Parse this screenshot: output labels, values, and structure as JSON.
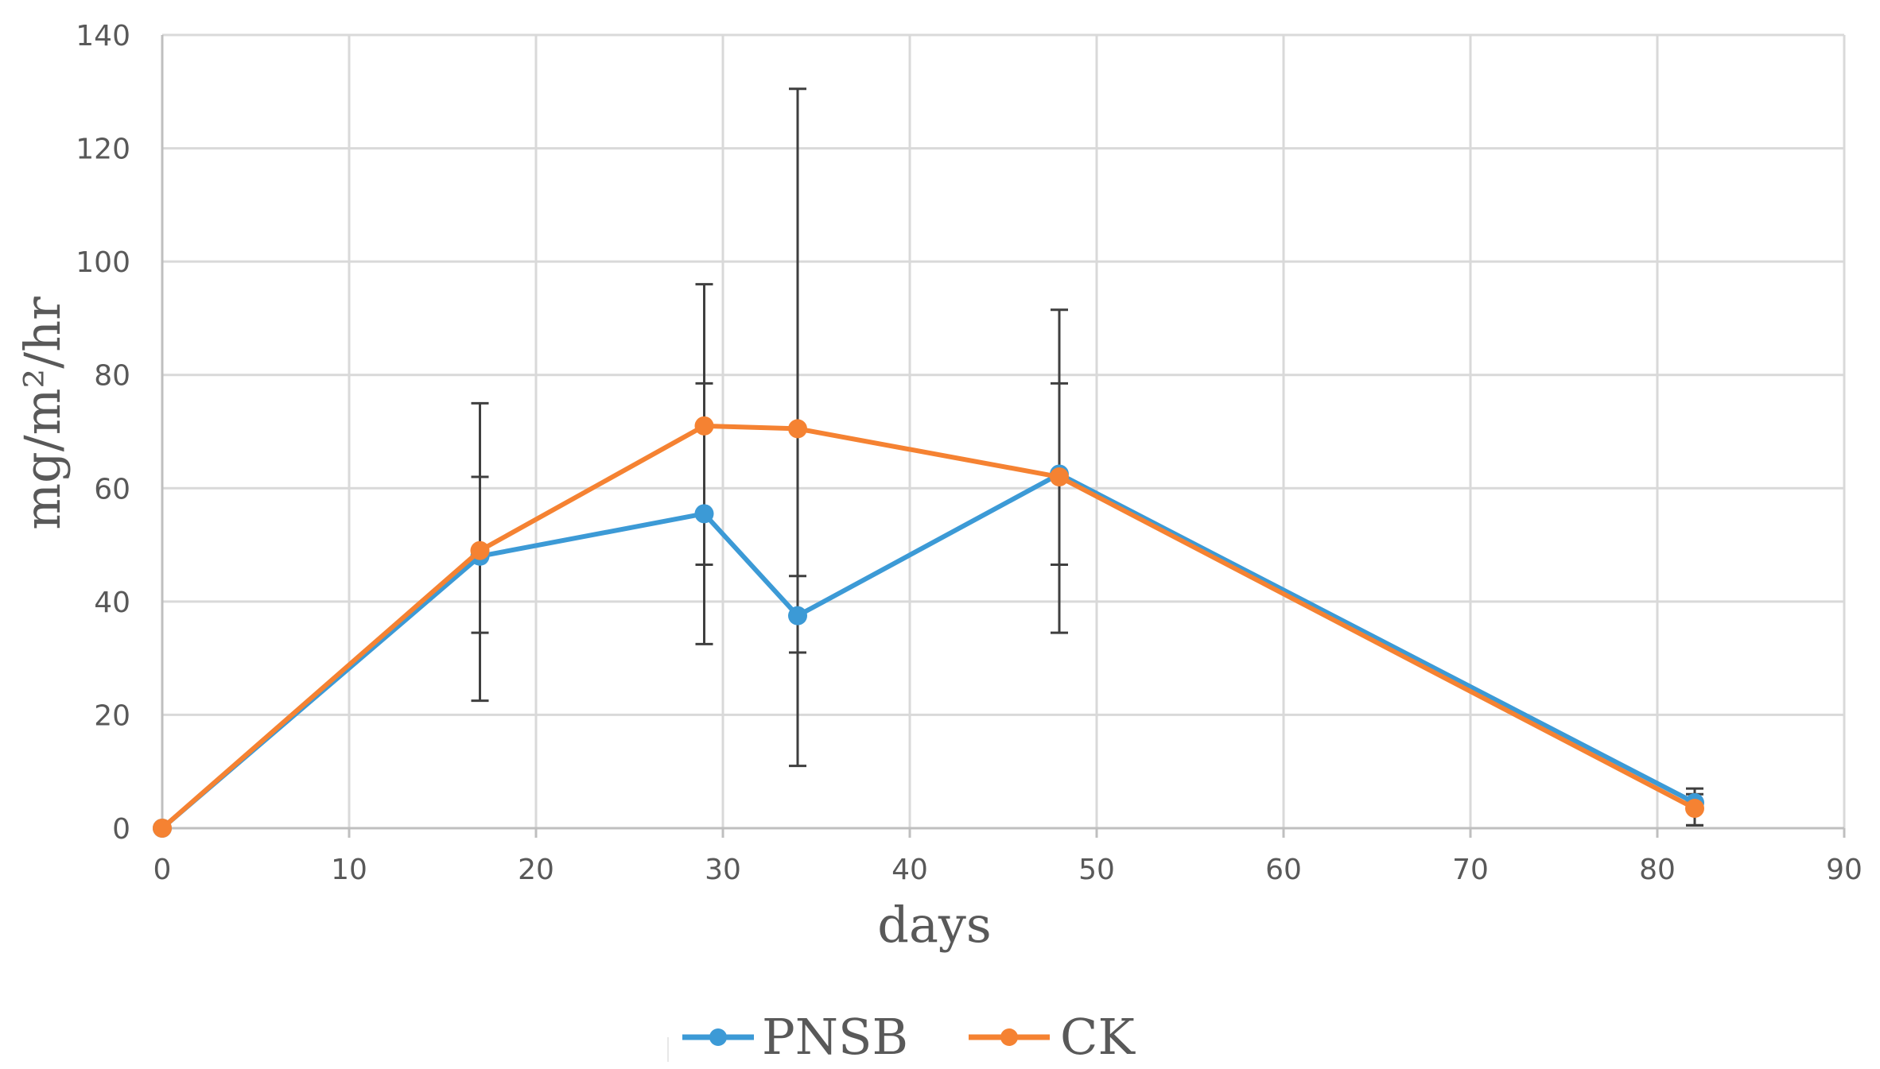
{
  "chart_data": {
    "type": "line",
    "title": "",
    "xlabel": "days",
    "ylabel": "mg/m²/hr",
    "xlim": [
      0,
      90
    ],
    "ylim": [
      0,
      140
    ],
    "xticks": [
      0,
      10,
      20,
      30,
      40,
      50,
      60,
      70,
      80,
      90
    ],
    "yticks": [
      0,
      20,
      40,
      60,
      80,
      100,
      120,
      140
    ],
    "grid": true,
    "legend_position": "bottom",
    "series": [
      {
        "name": "PNSB",
        "color": "#3c9ad6",
        "x": [
          0,
          17,
          29,
          34,
          48,
          82
        ],
        "values": [
          0,
          48,
          55.5,
          37.5,
          62.5,
          4.5
        ],
        "error_low": [
          0,
          34.5,
          46.5,
          11,
          34.5,
          0.5
        ],
        "error_high": [
          0,
          62,
          78.5,
          44.5,
          91.5,
          7
        ]
      },
      {
        "name": "CK",
        "color": "#f58232",
        "x": [
          0,
          17,
          29,
          34,
          48,
          82
        ],
        "values": [
          0,
          49,
          71,
          70.5,
          62,
          3.5
        ],
        "error_low": [
          0,
          22.5,
          32.5,
          31,
          46.5,
          0.5
        ],
        "error_high": [
          0,
          75,
          96,
          130.5,
          78.5,
          6
        ]
      }
    ]
  }
}
